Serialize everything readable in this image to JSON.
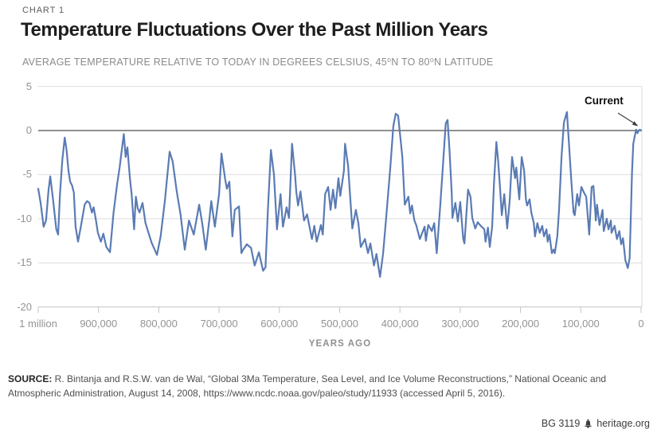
{
  "header": {
    "kicker": "CHART 1"
  },
  "chart_data": {
    "type": "line",
    "title": "Temperature Fluctuations Over the Past Million Years",
    "subtitle": "AVERAGE TEMPERATURE RELATIVE TO TODAY IN DEGREES CELSIUS, 45⁰N TO 80⁰N LATITUDE",
    "xlabel": "YEARS AGO",
    "ylabel": "",
    "xlim": [
      1000000,
      0
    ],
    "ylim": [
      -20,
      5
    ],
    "grid": true,
    "legend": "none",
    "line_color": "#5a7bb4",
    "zero_line_color": "#4c4c4c",
    "grid_color": "#dddddd",
    "axis_color": "#c4c4c4",
    "annotation": {
      "label": "Current",
      "x_years_ago": 0,
      "y": 0
    },
    "y_ticks": [
      5,
      0,
      -5,
      -10,
      -15,
      -20
    ],
    "y_tick_labels": [
      "5",
      "0",
      "-5",
      "-10",
      "-15",
      "-20"
    ],
    "x_ticks": [
      {
        "years": 1000000,
        "label": "1 million"
      },
      {
        "years": 900000,
        "label": "900,000"
      },
      {
        "years": 800000,
        "label": "800,000"
      },
      {
        "years": 700000,
        "label": "700,000"
      },
      {
        "years": 600000,
        "label": "600,000"
      },
      {
        "years": 500000,
        "label": "500,000"
      },
      {
        "years": 400000,
        "label": "400,000"
      },
      {
        "years": 300000,
        "label": "300,000"
      },
      {
        "years": 200000,
        "label": "200,000"
      },
      {
        "years": 100000,
        "label": "100,000"
      },
      {
        "years": 0,
        "label": "0"
      }
    ],
    "series_name": "Average temperature relative to today (°C), 45°N–80°N",
    "points_format": "[thousands_of_years_ago, temp_C]",
    "points": [
      [
        1000,
        -6.6
      ],
      [
        996,
        -8.2
      ],
      [
        991,
        -10.9
      ],
      [
        987,
        -10.2
      ],
      [
        983,
        -6.8
      ],
      [
        980,
        -5.2
      ],
      [
        976,
        -7.5
      ],
      [
        970,
        -11.2
      ],
      [
        967,
        -11.8
      ],
      [
        964,
        -7.2
      ],
      [
        960,
        -3.3
      ],
      [
        956,
        -0.8
      ],
      [
        953,
        -2.2
      ],
      [
        950,
        -4.5
      ],
      [
        947,
        -5.8
      ],
      [
        944,
        -6.2
      ],
      [
        941,
        -7.0
      ],
      [
        938,
        -10.9
      ],
      [
        934,
        -12.6
      ],
      [
        929,
        -10.8
      ],
      [
        923,
        -8.4
      ],
      [
        919,
        -8.0
      ],
      [
        915,
        -8.2
      ],
      [
        911,
        -9.3
      ],
      [
        908,
        -8.7
      ],
      [
        904,
        -10.3
      ],
      [
        901,
        -11.6
      ],
      [
        896,
        -12.6
      ],
      [
        892,
        -11.7
      ],
      [
        887,
        -13.2
      ],
      [
        881,
        -13.8
      ],
      [
        875,
        -9.3
      ],
      [
        869,
        -6.0
      ],
      [
        865,
        -4.2
      ],
      [
        861,
        -2.0
      ],
      [
        858,
        -0.4
      ],
      [
        855,
        -3.0
      ],
      [
        852,
        -1.9
      ],
      [
        848,
        -5.4
      ],
      [
        845,
        -7.2
      ],
      [
        841,
        -11.2
      ],
      [
        838,
        -7.5
      ],
      [
        835,
        -8.8
      ],
      [
        832,
        -9.3
      ],
      [
        827,
        -8.2
      ],
      [
        822,
        -10.5
      ],
      [
        812,
        -12.7
      ],
      [
        803,
        -14.1
      ],
      [
        797,
        -12.0
      ],
      [
        790,
        -8.0
      ],
      [
        782,
        -2.4
      ],
      [
        777,
        -3.5
      ],
      [
        770,
        -7.0
      ],
      [
        764,
        -9.5
      ],
      [
        757,
        -13.5
      ],
      [
        750,
        -10.2
      ],
      [
        742,
        -11.8
      ],
      [
        733,
        -8.4
      ],
      [
        728,
        -10.5
      ],
      [
        722,
        -13.5
      ],
      [
        716,
        -10.0
      ],
      [
        713,
        -8.0
      ],
      [
        707,
        -10.9
      ],
      [
        700,
        -7.2
      ],
      [
        696,
        -2.6
      ],
      [
        690,
        -5.5
      ],
      [
        687,
        -6.6
      ],
      [
        683,
        -5.8
      ],
      [
        678,
        -12.0
      ],
      [
        674,
        -9.0
      ],
      [
        667,
        -8.6
      ],
      [
        663,
        -13.9
      ],
      [
        660,
        -13.5
      ],
      [
        654,
        -12.9
      ],
      [
        647,
        -13.3
      ],
      [
        641,
        -15.3
      ],
      [
        634,
        -13.8
      ],
      [
        627,
        -15.9
      ],
      [
        623,
        -15.5
      ],
      [
        619,
        -9.0
      ],
      [
        614,
        -2.2
      ],
      [
        609,
        -5.0
      ],
      [
        604,
        -11.2
      ],
      [
        598,
        -7.2
      ],
      [
        594,
        -10.9
      ],
      [
        588,
        -8.7
      ],
      [
        584,
        -9.9
      ],
      [
        579,
        -1.5
      ],
      [
        574,
        -5.0
      ],
      [
        572,
        -6.9
      ],
      [
        569,
        -8.5
      ],
      [
        565,
        -6.9
      ],
      [
        559,
        -10.2
      ],
      [
        554,
        -9.5
      ],
      [
        546,
        -12.3
      ],
      [
        542,
        -10.8
      ],
      [
        538,
        -12.6
      ],
      [
        531,
        -10.7
      ],
      [
        528,
        -11.8
      ],
      [
        524,
        -7.2
      ],
      [
        519,
        -6.4
      ],
      [
        515,
        -9.0
      ],
      [
        511,
        -6.7
      ],
      [
        507,
        -8.8
      ],
      [
        502,
        -5.4
      ],
      [
        499,
        -7.4
      ],
      [
        493,
        -4.6
      ],
      [
        491,
        -1.5
      ],
      [
        486,
        -4.0
      ],
      [
        479,
        -11.1
      ],
      [
        473,
        -9.0
      ],
      [
        469,
        -10.5
      ],
      [
        465,
        -13.2
      ],
      [
        458,
        -12.3
      ],
      [
        453,
        -13.9
      ],
      [
        449,
        -12.8
      ],
      [
        443,
        -15.3
      ],
      [
        439,
        -14.0
      ],
      [
        433,
        -16.6
      ],
      [
        428,
        -14.0
      ],
      [
        423,
        -10.0
      ],
      [
        416,
        -4.2
      ],
      [
        411,
        0.5
      ],
      [
        407,
        1.9
      ],
      [
        403,
        1.7
      ],
      [
        399,
        -1.0
      ],
      [
        396,
        -3.0
      ],
      [
        392,
        -8.4
      ],
      [
        386,
        -7.5
      ],
      [
        383,
        -9.4
      ],
      [
        380,
        -8.5
      ],
      [
        376,
        -10.2
      ],
      [
        373,
        -10.7
      ],
      [
        367,
        -12.3
      ],
      [
        363,
        -11.6
      ],
      [
        359,
        -10.9
      ],
      [
        357,
        -12.5
      ],
      [
        353,
        -10.7
      ],
      [
        347,
        -11.4
      ],
      [
        343,
        -10.5
      ],
      [
        339,
        -13.9
      ],
      [
        333,
        -8.4
      ],
      [
        328,
        -3.3
      ],
      [
        324,
        0.8
      ],
      [
        321,
        1.2
      ],
      [
        318,
        -2.0
      ],
      [
        314,
        -7.2
      ],
      [
        313,
        -9.9
      ],
      [
        308,
        -8.2
      ],
      [
        304,
        -10.3
      ],
      [
        300,
        -8.1
      ],
      [
        295,
        -12.3
      ],
      [
        293,
        -12.8
      ],
      [
        287,
        -6.7
      ],
      [
        283,
        -7.5
      ],
      [
        280,
        -9.9
      ],
      [
        275,
        -11.1
      ],
      [
        271,
        -10.4
      ],
      [
        266,
        -10.8
      ],
      [
        260,
        -11.2
      ],
      [
        258,
        -12.6
      ],
      [
        254,
        -11.0
      ],
      [
        251,
        -13.2
      ],
      [
        247,
        -10.9
      ],
      [
        244,
        -6.0
      ],
      [
        240,
        -1.3
      ],
      [
        237,
        -3.5
      ],
      [
        234,
        -6.5
      ],
      [
        231,
        -9.6
      ],
      [
        227,
        -7.2
      ],
      [
        222,
        -11.1
      ],
      [
        218,
        -8.0
      ],
      [
        214,
        -3.0
      ],
      [
        209,
        -5.4
      ],
      [
        207,
        -4.2
      ],
      [
        202,
        -7.8
      ],
      [
        198,
        -3.0
      ],
      [
        194,
        -4.5
      ],
      [
        191,
        -7.8
      ],
      [
        189,
        -8.5
      ],
      [
        185,
        -7.8
      ],
      [
        182,
        -9.3
      ],
      [
        178,
        -10.5
      ],
      [
        176,
        -12.0
      ],
      [
        172,
        -10.5
      ],
      [
        168,
        -11.6
      ],
      [
        164,
        -10.8
      ],
      [
        161,
        -12.0
      ],
      [
        157,
        -11.2
      ],
      [
        155,
        -12.6
      ],
      [
        152,
        -11.8
      ],
      [
        148,
        -13.9
      ],
      [
        145,
        -13.5
      ],
      [
        143,
        -13.9
      ],
      [
        139,
        -12.0
      ],
      [
        136,
        -9.0
      ],
      [
        132,
        -3.0
      ],
      [
        128,
        0.9
      ],
      [
        123,
        2.1
      ],
      [
        119,
        -2.1
      ],
      [
        116,
        -5.4
      ],
      [
        112,
        -9.3
      ],
      [
        110,
        -9.6
      ],
      [
        106,
        -7.2
      ],
      [
        103,
        -8.5
      ],
      [
        99,
        -6.4
      ],
      [
        95,
        -7.0
      ],
      [
        91,
        -7.5
      ],
      [
        86,
        -11.8
      ],
      [
        82,
        -6.4
      ],
      [
        79,
        -6.3
      ],
      [
        75,
        -10.2
      ],
      [
        73,
        -8.4
      ],
      [
        69,
        -10.7
      ],
      [
        64,
        -9.0
      ],
      [
        62,
        -11.4
      ],
      [
        57,
        -10.0
      ],
      [
        54,
        -11.2
      ],
      [
        50,
        -10.2
      ],
      [
        49,
        -11.6
      ],
      [
        44,
        -10.8
      ],
      [
        40,
        -12.3
      ],
      [
        36,
        -11.4
      ],
      [
        33,
        -12.9
      ],
      [
        30,
        -12.2
      ],
      [
        26,
        -14.7
      ],
      [
        22,
        -15.6
      ],
      [
        19,
        -14.5
      ],
      [
        17,
        -9.9
      ],
      [
        15,
        -4.8
      ],
      [
        13,
        -1.5
      ],
      [
        10,
        -0.5
      ],
      [
        8,
        0.1
      ],
      [
        6,
        -0.3
      ],
      [
        4,
        0.0
      ],
      [
        2,
        0.1
      ],
      [
        0,
        0.0
      ]
    ]
  },
  "footer": {
    "source_label": "SOURCE:",
    "source_text": " R. Bintanja and R.S.W. van de Wal, “Global 3Ma Temperature, Sea Level, and Ice Volume Reconstructions,” National Oceanic and Atmospheric Administration, August 14, 2008, https://www.ncdc.noaa.gov/paleo/study/11933 (accessed April 5, 2016).",
    "doc_id": "BG 3119",
    "site": "heritage.org"
  }
}
